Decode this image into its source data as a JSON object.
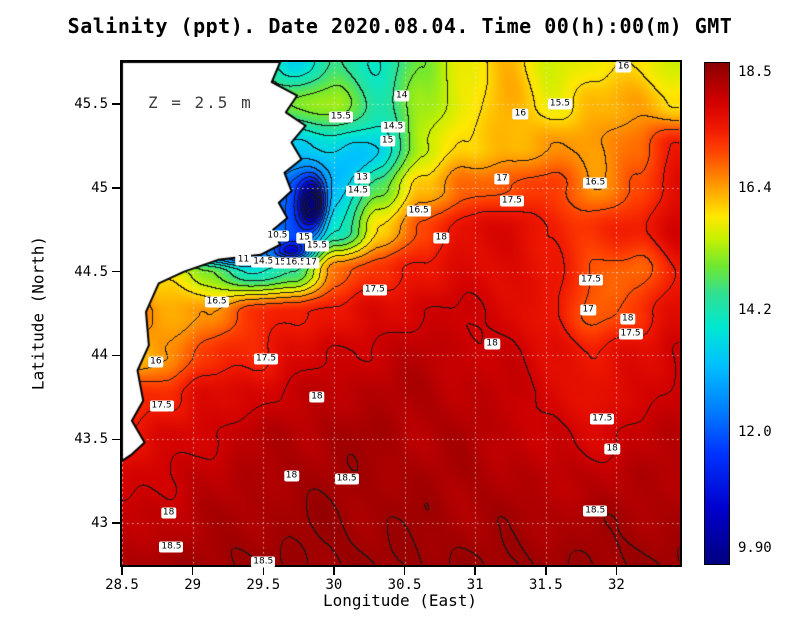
{
  "title": "Salinity (ppt). Date 2020.08.04. Time 00(h):00(m) GMT",
  "annotation": "Z = 2.5 m",
  "axes": {
    "x": {
      "label": "Longitude (East)",
      "ticks": [
        "28.5",
        "29",
        "29.5",
        "30",
        "30.5",
        "31",
        "31.5",
        "32"
      ],
      "tick_values": [
        28.5,
        29,
        29.5,
        30,
        30.5,
        31,
        31.5,
        32
      ],
      "range": [
        28.5,
        32.45
      ]
    },
    "y": {
      "label": "Latitude (North)",
      "ticks": [
        "43",
        "43.5",
        "44",
        "44.5",
        "45",
        "45.5"
      ],
      "tick_values": [
        43,
        43.5,
        44,
        44.5,
        45,
        45.5
      ],
      "range": [
        42.75,
        45.75
      ]
    }
  },
  "colorbar": {
    "ticks": [
      "18.5",
      "16.4",
      "14.2",
      "12.0",
      "9.90"
    ],
    "tick_values": [
      18.5,
      16.4,
      14.2,
      12.0,
      9.9
    ],
    "range": [
      9.59,
      18.68
    ],
    "stops": [
      [
        9.59,
        "#000080"
      ],
      [
        10.6,
        "#0000cd"
      ],
      [
        11.6,
        "#0033ff"
      ],
      [
        12.4,
        "#0080ff"
      ],
      [
        13.2,
        "#00c0ff"
      ],
      [
        13.9,
        "#00e8d0"
      ],
      [
        14.5,
        "#30e090"
      ],
      [
        15.0,
        "#70e830"
      ],
      [
        15.5,
        "#c8f000"
      ],
      [
        15.9,
        "#ffe800"
      ],
      [
        16.3,
        "#ffb000"
      ],
      [
        16.7,
        "#ff7800"
      ],
      [
        17.1,
        "#ff4000"
      ],
      [
        17.5,
        "#f01800"
      ],
      [
        18.0,
        "#d00000"
      ],
      [
        18.68,
        "#8b0000"
      ]
    ]
  },
  "chart_data": {
    "type": "heatmap",
    "title": "Salinity (ppt) at depth 2.5 m, 2020.08.04 00:00 GMT",
    "x_range": [
      28.5,
      32.45
    ],
    "y_range": [
      42.75,
      45.75
    ],
    "contour_interval": 0.5,
    "units": "ppt",
    "land_color": "#ffffff",
    "coast_color": "#000000",
    "values_order": "rows north to south, lat 45.75 to 42.75; cols lon 28.5 to 32.45",
    "values": [
      [
        15.5,
        15.5,
        15.5,
        15.0,
        13.5,
        14.5,
        14.0,
        15.0,
        15.8,
        16.2,
        15.6,
        15.8,
        16.0,
        15.5
      ],
      [
        15.5,
        15.5,
        15.3,
        15.2,
        15.0,
        15.3,
        14.3,
        15.2,
        15.8,
        16.3,
        15.8,
        16.2,
        16.4,
        16.0
      ],
      [
        15.5,
        15.4,
        15.2,
        14.5,
        13.5,
        14.0,
        13.8,
        15.5,
        16.0,
        16.3,
        16.4,
        16.5,
        16.8,
        17.5
      ],
      [
        15.0,
        15.0,
        14.5,
        13.5,
        12.0,
        13.5,
        15.0,
        16.2,
        16.8,
        17.0,
        17.2,
        16.5,
        17.0,
        17.8
      ],
      [
        15.0,
        14.8,
        14.2,
        13.0,
        12.0,
        14.0,
        16.0,
        17.0,
        17.8,
        17.8,
        17.5,
        17.2,
        17.5,
        18.0
      ],
      [
        15.5,
        16.0,
        15.2,
        14.0,
        14.5,
        16.8,
        17.3,
        17.6,
        17.8,
        17.8,
        17.6,
        17.0,
        16.8,
        17.5
      ],
      [
        17.0,
        16.3,
        16.5,
        17.2,
        17.5,
        17.6,
        17.8,
        18.0,
        18.0,
        17.9,
        17.5,
        16.9,
        17.2,
        17.8
      ],
      [
        16.0,
        16.5,
        17.2,
        17.4,
        17.8,
        18.0,
        18.1,
        18.2,
        18.1,
        18.0,
        17.8,
        17.5,
        17.8,
        18.0
      ],
      [
        17.2,
        17.4,
        17.8,
        17.9,
        18.1,
        18.2,
        18.3,
        18.3,
        18.2,
        18.1,
        17.9,
        17.6,
        17.9,
        18.1
      ],
      [
        17.6,
        17.8,
        18.0,
        18.2,
        18.3,
        18.4,
        18.4,
        18.3,
        18.3,
        18.2,
        18.0,
        17.9,
        18.1,
        18.2
      ],
      [
        17.9,
        18.0,
        18.2,
        18.3,
        18.4,
        18.45,
        18.4,
        18.4,
        18.35,
        18.3,
        18.2,
        18.2,
        18.3,
        18.3
      ],
      [
        18.1,
        18.2,
        18.3,
        18.4,
        18.45,
        18.5,
        18.45,
        18.45,
        18.4,
        18.4,
        18.35,
        18.4,
        18.4,
        18.4
      ],
      [
        18.3,
        18.4,
        18.45,
        18.5,
        18.5,
        18.5,
        18.5,
        18.5,
        18.5,
        18.5,
        18.45,
        18.5,
        18.5,
        18.5
      ]
    ],
    "anomalies": [
      {
        "lon": 29.85,
        "lat": 44.9,
        "amp": -4.0,
        "rx": 0.09,
        "ry": 0.14
      },
      {
        "lon": 29.7,
        "lat": 44.62,
        "amp": -2.5,
        "rx": 0.13,
        "ry": 0.06
      },
      {
        "lon": 29.25,
        "lat": 44.58,
        "amp": -2.0,
        "rx": 0.3,
        "ry": 0.05
      },
      {
        "lon": 28.84,
        "lat": 44.6,
        "amp": -1.8,
        "rx": 0.1,
        "ry": 0.08
      },
      {
        "lon": 30.15,
        "lat": 45.15,
        "amp": -0.8,
        "rx": 0.25,
        "ry": 0.15
      }
    ],
    "land_polygon": [
      [
        28.5,
        45.75
      ],
      [
        29.62,
        45.75
      ],
      [
        29.56,
        45.63
      ],
      [
        29.74,
        45.55
      ],
      [
        29.66,
        45.45
      ],
      [
        29.8,
        45.37
      ],
      [
        29.7,
        45.27
      ],
      [
        29.77,
        45.17
      ],
      [
        29.65,
        45.09
      ],
      [
        29.7,
        44.98
      ],
      [
        29.61,
        44.91
      ],
      [
        29.67,
        44.82
      ],
      [
        29.57,
        44.75
      ],
      [
        29.62,
        44.66
      ],
      [
        29.48,
        44.6
      ],
      [
        29.18,
        44.57
      ],
      [
        28.94,
        44.5
      ],
      [
        28.76,
        44.43
      ],
      [
        28.67,
        44.26
      ],
      [
        28.69,
        44.06
      ],
      [
        28.61,
        43.91
      ],
      [
        28.65,
        43.73
      ],
      [
        28.57,
        43.61
      ],
      [
        28.66,
        43.48
      ],
      [
        28.57,
        43.41
      ],
      [
        28.5,
        43.37
      ]
    ],
    "contour_labels": [
      {
        "lon": 32.05,
        "lat": 45.72,
        "text": "16"
      },
      {
        "lon": 30.48,
        "lat": 45.55,
        "text": "14"
      },
      {
        "lon": 30.05,
        "lat": 45.42,
        "text": "15.5"
      },
      {
        "lon": 30.42,
        "lat": 45.36,
        "text": "14.5"
      },
      {
        "lon": 30.38,
        "lat": 45.28,
        "text": "15"
      },
      {
        "lon": 31.32,
        "lat": 45.44,
        "text": "16"
      },
      {
        "lon": 31.6,
        "lat": 45.5,
        "text": "15.5"
      },
      {
        "lon": 31.19,
        "lat": 45.05,
        "text": "17"
      },
      {
        "lon": 31.85,
        "lat": 45.03,
        "text": "16.5"
      },
      {
        "lon": 31.26,
        "lat": 44.92,
        "text": "17.5"
      },
      {
        "lon": 30.6,
        "lat": 44.86,
        "text": "16.5"
      },
      {
        "lon": 30.2,
        "lat": 45.06,
        "text": "13"
      },
      {
        "lon": 30.17,
        "lat": 44.98,
        "text": "14.5"
      },
      {
        "lon": 29.6,
        "lat": 44.71,
        "text": "10.5"
      },
      {
        "lon": 29.79,
        "lat": 44.7,
        "text": "15"
      },
      {
        "lon": 29.88,
        "lat": 44.65,
        "text": "15.5"
      },
      {
        "lon": 29.36,
        "lat": 44.57,
        "text": "11"
      },
      {
        "lon": 29.5,
        "lat": 44.56,
        "text": "14.5"
      },
      {
        "lon": 29.62,
        "lat": 44.55,
        "text": "15"
      },
      {
        "lon": 29.73,
        "lat": 44.55,
        "text": "16.5"
      },
      {
        "lon": 29.84,
        "lat": 44.55,
        "text": "17"
      },
      {
        "lon": 30.76,
        "lat": 44.7,
        "text": "18"
      },
      {
        "lon": 30.29,
        "lat": 44.39,
        "text": "17.5"
      },
      {
        "lon": 29.17,
        "lat": 44.32,
        "text": "16.5"
      },
      {
        "lon": 31.82,
        "lat": 44.45,
        "text": "17.5"
      },
      {
        "lon": 31.8,
        "lat": 44.27,
        "text": "17"
      },
      {
        "lon": 32.08,
        "lat": 44.22,
        "text": "18"
      },
      {
        "lon": 32.1,
        "lat": 44.13,
        "text": "17.5"
      },
      {
        "lon": 31.12,
        "lat": 44.07,
        "text": "18"
      },
      {
        "lon": 28.74,
        "lat": 43.96,
        "text": "16"
      },
      {
        "lon": 29.52,
        "lat": 43.98,
        "text": "17.5"
      },
      {
        "lon": 29.88,
        "lat": 43.75,
        "text": "18"
      },
      {
        "lon": 28.78,
        "lat": 43.7,
        "text": "17.5"
      },
      {
        "lon": 31.9,
        "lat": 43.62,
        "text": "17.5"
      },
      {
        "lon": 31.97,
        "lat": 43.44,
        "text": "18"
      },
      {
        "lon": 29.7,
        "lat": 43.28,
        "text": "18"
      },
      {
        "lon": 30.09,
        "lat": 43.26,
        "text": "18.5"
      },
      {
        "lon": 28.83,
        "lat": 43.06,
        "text": "18"
      },
      {
        "lon": 31.85,
        "lat": 43.07,
        "text": "18.5"
      },
      {
        "lon": 28.85,
        "lat": 42.86,
        "text": "18.5"
      },
      {
        "lon": 29.5,
        "lat": 42.77,
        "text": "18.5"
      }
    ]
  }
}
